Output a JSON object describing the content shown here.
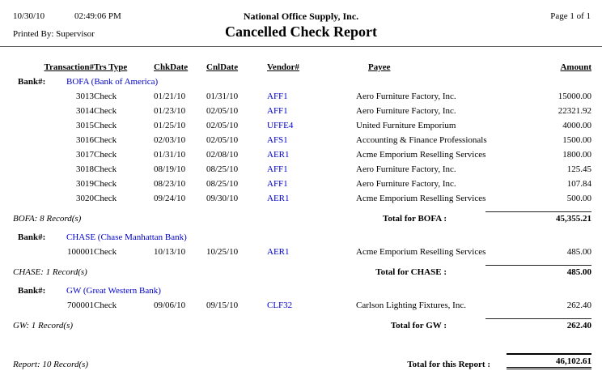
{
  "header": {
    "print_date": "10/30/10",
    "print_time": "02:49:06 PM",
    "printed_by": "Printed By: Supervisor",
    "company_name": "National Office Supply, Inc.",
    "report_title": "Cancelled Check Report",
    "page_indicator": "Page 1 of 1"
  },
  "columns": {
    "transaction": "Transaction#",
    "trs_type": "Trs Type",
    "chk_date": "ChkDate",
    "cnl_date": "CnlDate",
    "vendor": "Vendor#",
    "payee": "Payee",
    "amount": "Amount"
  },
  "labels": {
    "bank": "Bank#:"
  },
  "colors": {
    "link_blue": "#0000cc",
    "text": "#000000",
    "rule": "#555555"
  },
  "sections": [
    {
      "bank_name": "BOFA (Bank of America)",
      "rows": [
        {
          "txn": "3013",
          "type": "Check",
          "chk": "01/21/10",
          "cnl": "01/31/10",
          "vendor": "AFF1",
          "payee": "Aero Furniture Factory, Inc.",
          "amount": "15000.00"
        },
        {
          "txn": "3014",
          "type": "Check",
          "chk": "01/23/10",
          "cnl": "02/05/10",
          "vendor": "AFF1",
          "payee": "Aero Furniture Factory, Inc.",
          "amount": "22321.92"
        },
        {
          "txn": "3015",
          "type": "Check",
          "chk": "01/25/10",
          "cnl": "02/05/10",
          "vendor": "UFFE4",
          "payee": "United Furniture Emporium",
          "amount": "4000.00"
        },
        {
          "txn": "3016",
          "type": "Check",
          "chk": "02/03/10",
          "cnl": "02/05/10",
          "vendor": "AFS1",
          "payee": "Accounting & Finance Professionals",
          "amount": "1500.00"
        },
        {
          "txn": "3017",
          "type": "Check",
          "chk": "01/31/10",
          "cnl": "02/08/10",
          "vendor": "AER1",
          "payee": "Acme Emporium Reselling Services",
          "amount": "1800.00"
        },
        {
          "txn": "3018",
          "type": "Check",
          "chk": "08/19/10",
          "cnl": "08/25/10",
          "vendor": "AFF1",
          "payee": "Aero Furniture Factory, Inc.",
          "amount": "125.45"
        },
        {
          "txn": "3019",
          "type": "Check",
          "chk": "08/23/10",
          "cnl": "08/25/10",
          "vendor": "AFF1",
          "payee": "Aero Furniture Factory, Inc.",
          "amount": "107.84"
        },
        {
          "txn": "3020",
          "type": "Check",
          "chk": "09/24/10",
          "cnl": "09/30/10",
          "vendor": "AER1",
          "payee": "Acme Emporium Reselling Services",
          "amount": "500.00"
        }
      ],
      "record_count": "BOFA: 8 Record(s)",
      "total_label": "Total for BOFA :",
      "total_amount": "45,355.21"
    },
    {
      "bank_name": "CHASE (Chase Manhattan Bank)",
      "rows": [
        {
          "txn": "100001",
          "type": "Check",
          "chk": "10/13/10",
          "cnl": "10/25/10",
          "vendor": "AER1",
          "payee": "Acme Emporium Reselling Services",
          "amount": "485.00"
        }
      ],
      "record_count": "CHASE: 1 Record(s)",
      "total_label": "Total for CHASE :",
      "total_amount": "485.00"
    },
    {
      "bank_name": "GW (Great Western Bank)",
      "rows": [
        {
          "txn": "700001",
          "type": "Check",
          "chk": "09/06/10",
          "cnl": "09/15/10",
          "vendor": "CLF32",
          "payee": "Carlson Lighting Fixtures, Inc.",
          "amount": "262.40"
        }
      ],
      "record_count": "GW: 1 Record(s)",
      "total_label": "Total for GW :",
      "total_amount": "262.40"
    }
  ],
  "report_footer": {
    "record_count": "Report: 10 Record(s)",
    "total_label": "Total for this Report :",
    "total_amount": "46,102.61"
  }
}
